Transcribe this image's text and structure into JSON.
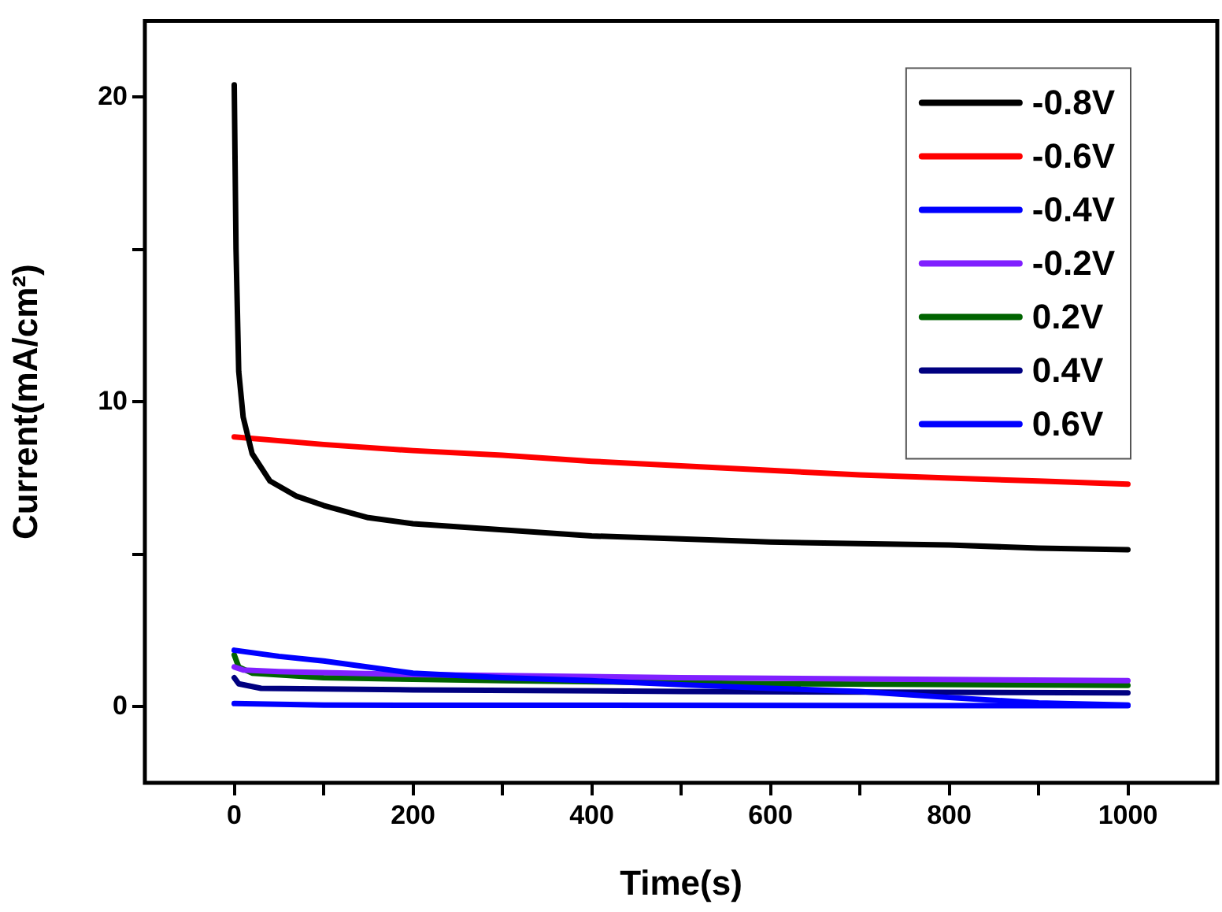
{
  "chart_data": {
    "type": "line",
    "xlabel": "Time(s)",
    "ylabel": "Current(mA/cm²)",
    "xlim": [
      -100,
      1100
    ],
    "xticks": [
      0,
      {
        "value": 100,
        "label": null
      },
      200,
      {
        "value": 300,
        "label": null
      },
      400,
      {
        "value": 500,
        "label": null
      },
      600,
      {
        "value": 700,
        "label": null
      },
      800,
      {
        "value": 900,
        "label": null
      },
      1000
    ],
    "ylim": [
      -2.5,
      22.5
    ],
    "yticks": [
      0,
      {
        "value": 5,
        "label": null
      },
      10,
      {
        "value": 15,
        "label": null
      },
      20
    ],
    "grid": false,
    "legend": "top right",
    "marker": "none",
    "line_style": "solid",
    "series": [
      {
        "name": "-0.8V",
        "color": "#000000",
        "x": [
          0,
          2,
          5,
          10,
          20,
          40,
          70,
          100,
          150,
          200,
          300,
          400,
          500,
          600,
          700,
          800,
          900,
          1000
        ],
        "values": [
          20.4,
          15,
          11,
          9.5,
          8.3,
          7.4,
          6.9,
          6.6,
          6.2,
          6.0,
          5.8,
          5.6,
          5.5,
          5.4,
          5.35,
          5.3,
          5.2,
          5.15
        ]
      },
      {
        "name": "-0.6V",
        "color": "#ff0000",
        "x": [
          0,
          100,
          200,
          300,
          400,
          500,
          600,
          700,
          800,
          900,
          1000
        ],
        "values": [
          8.85,
          8.6,
          8.4,
          8.25,
          8.05,
          7.9,
          7.75,
          7.6,
          7.5,
          7.4,
          7.3
        ]
      },
      {
        "name": "-0.4V",
        "color": "#0000ff",
        "x": [
          0,
          50,
          100,
          200,
          300,
          400,
          500,
          600,
          700,
          800,
          900,
          1000
        ],
        "values": [
          1.85,
          1.65,
          1.5,
          1.1,
          0.95,
          0.85,
          0.72,
          0.6,
          0.5,
          0.3,
          0.12,
          0.05
        ]
      },
      {
        "name": "-0.2V",
        "color": "#8020ff",
        "x": [
          0,
          10,
          50,
          200,
          500,
          1000
        ],
        "values": [
          1.3,
          1.2,
          1.15,
          1.05,
          0.95,
          0.85
        ]
      },
      {
        "name": "0.2V",
        "color": "#006400",
        "x": [
          0,
          5,
          20,
          100,
          300,
          600,
          1000
        ],
        "values": [
          1.7,
          1.3,
          1.1,
          0.95,
          0.85,
          0.75,
          0.7
        ]
      },
      {
        "name": "0.4V",
        "color": "#000080",
        "x": [
          0,
          5,
          30,
          200,
          500,
          1000
        ],
        "values": [
          0.95,
          0.75,
          0.6,
          0.55,
          0.5,
          0.45
        ]
      },
      {
        "name": "0.6V",
        "color": "#0000ff",
        "x": [
          0,
          100,
          1000
        ],
        "values": [
          0.1,
          0.05,
          0.03
        ]
      }
    ]
  }
}
